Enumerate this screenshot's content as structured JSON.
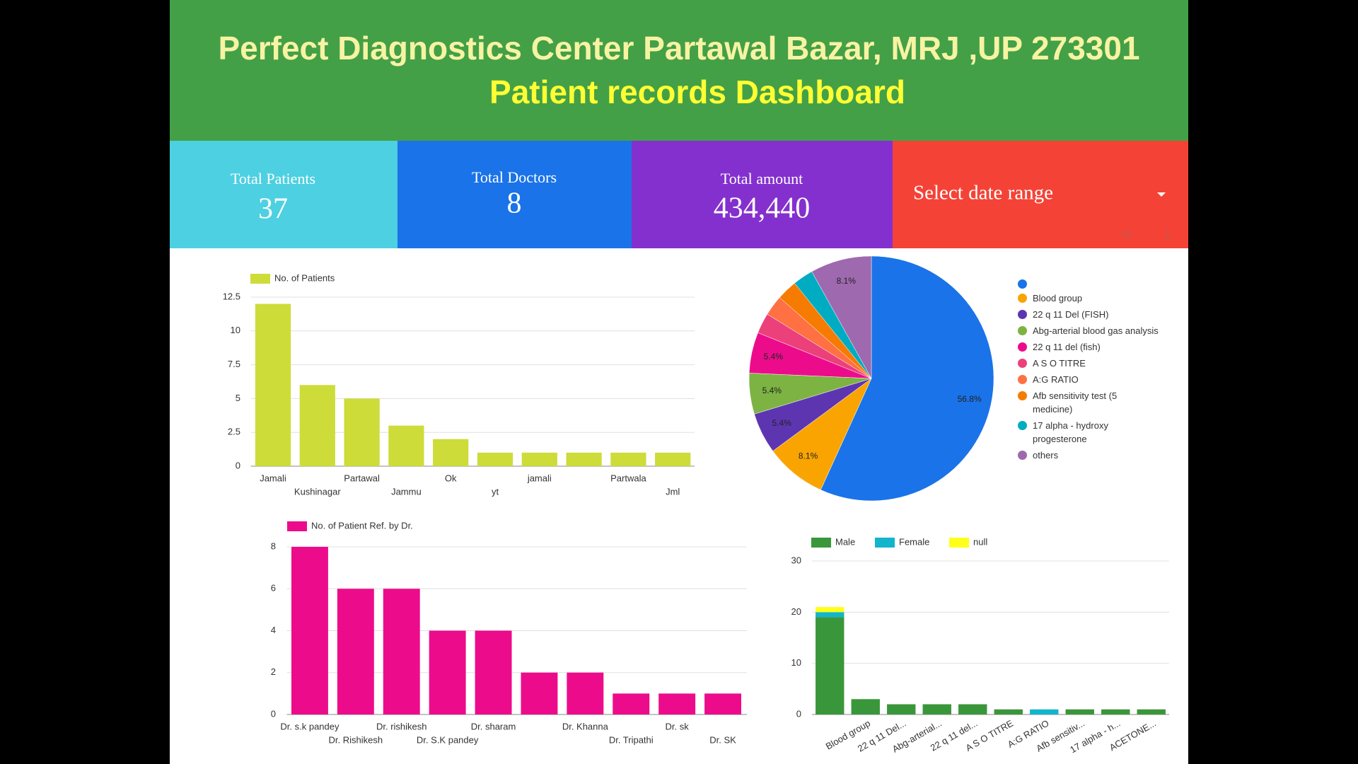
{
  "header": {
    "title": "Perfect Diagnostics Center Partawal Bazar, MRJ ,UP 273301",
    "subtitle": "Patient records Dashboard"
  },
  "kpis": [
    {
      "label": "Total Patients",
      "value": "37"
    },
    {
      "label": "Total Doctors",
      "value": "8"
    },
    {
      "label": "Total amount",
      "value": "434,440"
    }
  ],
  "controls": {
    "date_range": "Select date range",
    "sort_icon": "AZ"
  },
  "chart_data": [
    {
      "type": "bar",
      "categories": [
        "Jamali",
        "Kushinagar",
        "Partawal",
        "Jammu",
        "Ok",
        "yt",
        "jamali",
        null,
        "Partwala",
        "Jml"
      ],
      "series": [
        {
          "name": "No. of Patients",
          "color": "#cddc39",
          "values": [
            12,
            6,
            5,
            3,
            2,
            1,
            1,
            1,
            1,
            1
          ]
        }
      ],
      "ylim": [
        0,
        12.5
      ],
      "yticks": [
        0,
        2.5,
        5,
        7.5,
        10,
        12.5
      ],
      "grid": true
    },
    {
      "type": "pie",
      "categories": [
        null,
        "Blood group",
        "22 q 11 Del (FISH)",
        "Abg-arterial blood gas analysis",
        "22 q 11 del (fish)",
        "A S O TITRE",
        "A:G RATIO",
        "Afb sensitivity test (5 medicine)",
        "17 alpha - hydroxy progesterone",
        "others"
      ],
      "values": [
        56.8,
        8.1,
        5.4,
        5.4,
        5.4,
        2.7,
        2.7,
        2.7,
        2.7,
        8.1
      ],
      "value_labels": [
        "56.8%",
        "8.1%",
        "5.4%",
        "5.4%",
        "5.4%",
        null,
        null,
        null,
        null,
        "8.1%"
      ],
      "colors": [
        "#1a73e8",
        "#f9a400",
        "#5e35b1",
        "#7cb342",
        "#ec0c8b",
        "#ec407a",
        "#ff7043",
        "#f57c00",
        "#00acc1",
        "#9e69af"
      ]
    },
    {
      "type": "bar",
      "categories": [
        "Dr. s.k pandey",
        "Dr. Rishikesh",
        "Dr. rishikesh",
        "Dr. S.K pandey",
        "Dr. sharam",
        null,
        "Dr. Khanna",
        "Dr. Tripathi",
        "Dr. sk",
        "Dr. SK"
      ],
      "series": [
        {
          "name": "No. of Patient Ref. by Dr.",
          "color": "#ec0c8b",
          "values": [
            8,
            6,
            6,
            4,
            4,
            2,
            2,
            1,
            1,
            1
          ]
        }
      ],
      "ylim": [
        0,
        8
      ],
      "yticks": [
        0,
        2,
        4,
        6,
        8
      ],
      "grid": true
    },
    {
      "type": "bar",
      "stacked": true,
      "categories": [
        null,
        "Blood group",
        "22 q 11 Del...",
        "Abg-arterial...",
        "22 q 11 del...",
        "A S O TITRE",
        "A:G RATIO",
        "Afb sensitiv...",
        "17 alpha - h...",
        "ACETONE..."
      ],
      "series": [
        {
          "name": "Male",
          "color": "#3a963a",
          "values": [
            19,
            3,
            2,
            2,
            2,
            1,
            0,
            1,
            1,
            1
          ]
        },
        {
          "name": "Female",
          "color": "#12b5cb",
          "values": [
            1,
            0,
            0,
            0,
            0,
            0,
            1,
            0,
            0,
            0
          ]
        },
        {
          "name": "null",
          "color": "#ffff1a",
          "values": [
            1,
            0,
            0,
            0,
            0,
            0,
            0,
            0,
            0,
            0
          ]
        }
      ],
      "ylim": [
        0,
        30
      ],
      "yticks": [
        0,
        10,
        20,
        30
      ],
      "grid": true
    }
  ]
}
